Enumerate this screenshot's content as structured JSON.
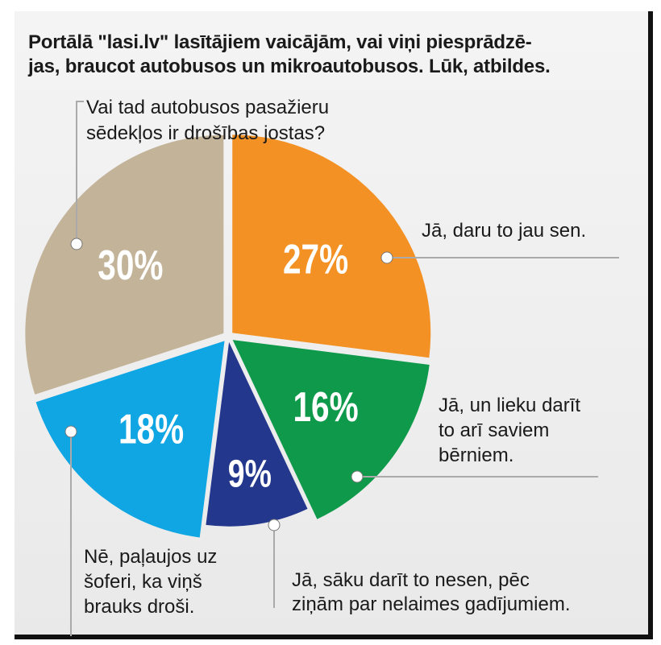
{
  "title": "Portālā \"lasi.lv\" lasītājiem vaicājām, vai viņi piesprādzē-\njas, braucot autobusos un mikroautobusos. Lūk, atbildes.",
  "colors": {
    "orange": "#f39124",
    "green": "#0e9a4a",
    "navy": "#23378c",
    "blue": "#10a6e3",
    "tan": "#c3b399"
  },
  "chart_data": {
    "type": "pie",
    "title": "Portālā \"lasi.lv\" lasītājiem vaicājām, vai viņi piesprādzējas, braucot autobusos un mikroautobusos. Lūk, atbildes.",
    "unit": "%",
    "slices": [
      {
        "label": "Jā, daru to jau sen.",
        "value": 27,
        "value_label": "27%",
        "color": "#f39124"
      },
      {
        "label": "Jā, un lieku darīt\nto arī saviem\nbērniem.",
        "value": 16,
        "value_label": "16%",
        "color": "#0e9a4a"
      },
      {
        "label": "Jā, sāku darīt to nesen, pēc\nziņām par nelaimes gadījumiem.",
        "value": 9,
        "value_label": "9%",
        "color": "#23378c"
      },
      {
        "label": "Nē, paļaujos uz\nšoferi, ka viņš\nbrauks droši.",
        "value": 18,
        "value_label": "18%",
        "color": "#10a6e3"
      },
      {
        "label": "Vai tad autobusos pasažieru\nsēdekļos ir drošības jostas?",
        "value": 30,
        "value_label": "30%",
        "color": "#c3b399"
      }
    ]
  }
}
